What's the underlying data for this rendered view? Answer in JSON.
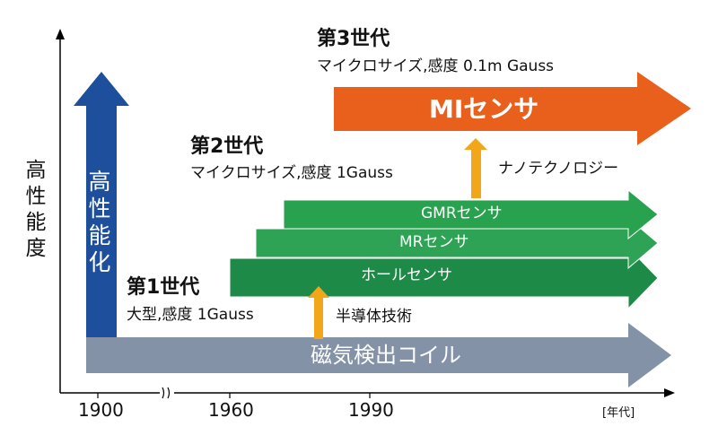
{
  "axis": {
    "y_label": "高性能度",
    "x_ticks": [
      "1900",
      "1960",
      "1990"
    ],
    "x_unit": "[年代]"
  },
  "vertical_arrow": {
    "label": "高性能化",
    "color": "#1e4f9c"
  },
  "generations": [
    {
      "title": "第1世代",
      "desc": "大型,感度 1Gauss"
    },
    {
      "title": "第2世代",
      "desc": "マイクロサイズ,感度 1Gauss"
    },
    {
      "title": "第3世代",
      "desc": "マイクロサイズ,感度 0.1m Gauss"
    }
  ],
  "bars": {
    "coil": {
      "label": "磁気検出コイル",
      "color": "#8492a8"
    },
    "hall": {
      "label": "ホールセンサ",
      "color": "#1e8a48"
    },
    "mr": {
      "label": "MRセンサ",
      "color": "#2ea355"
    },
    "gmr": {
      "label": "GMRセンサ",
      "color": "#28a24e"
    },
    "mi": {
      "label": "MIセンサ",
      "color": "#e8601c"
    }
  },
  "transitions": [
    {
      "label": "半導体技術",
      "color": "#f2a71b"
    },
    {
      "label": "ナノテクノロジー",
      "color": "#f2a71b"
    }
  ]
}
